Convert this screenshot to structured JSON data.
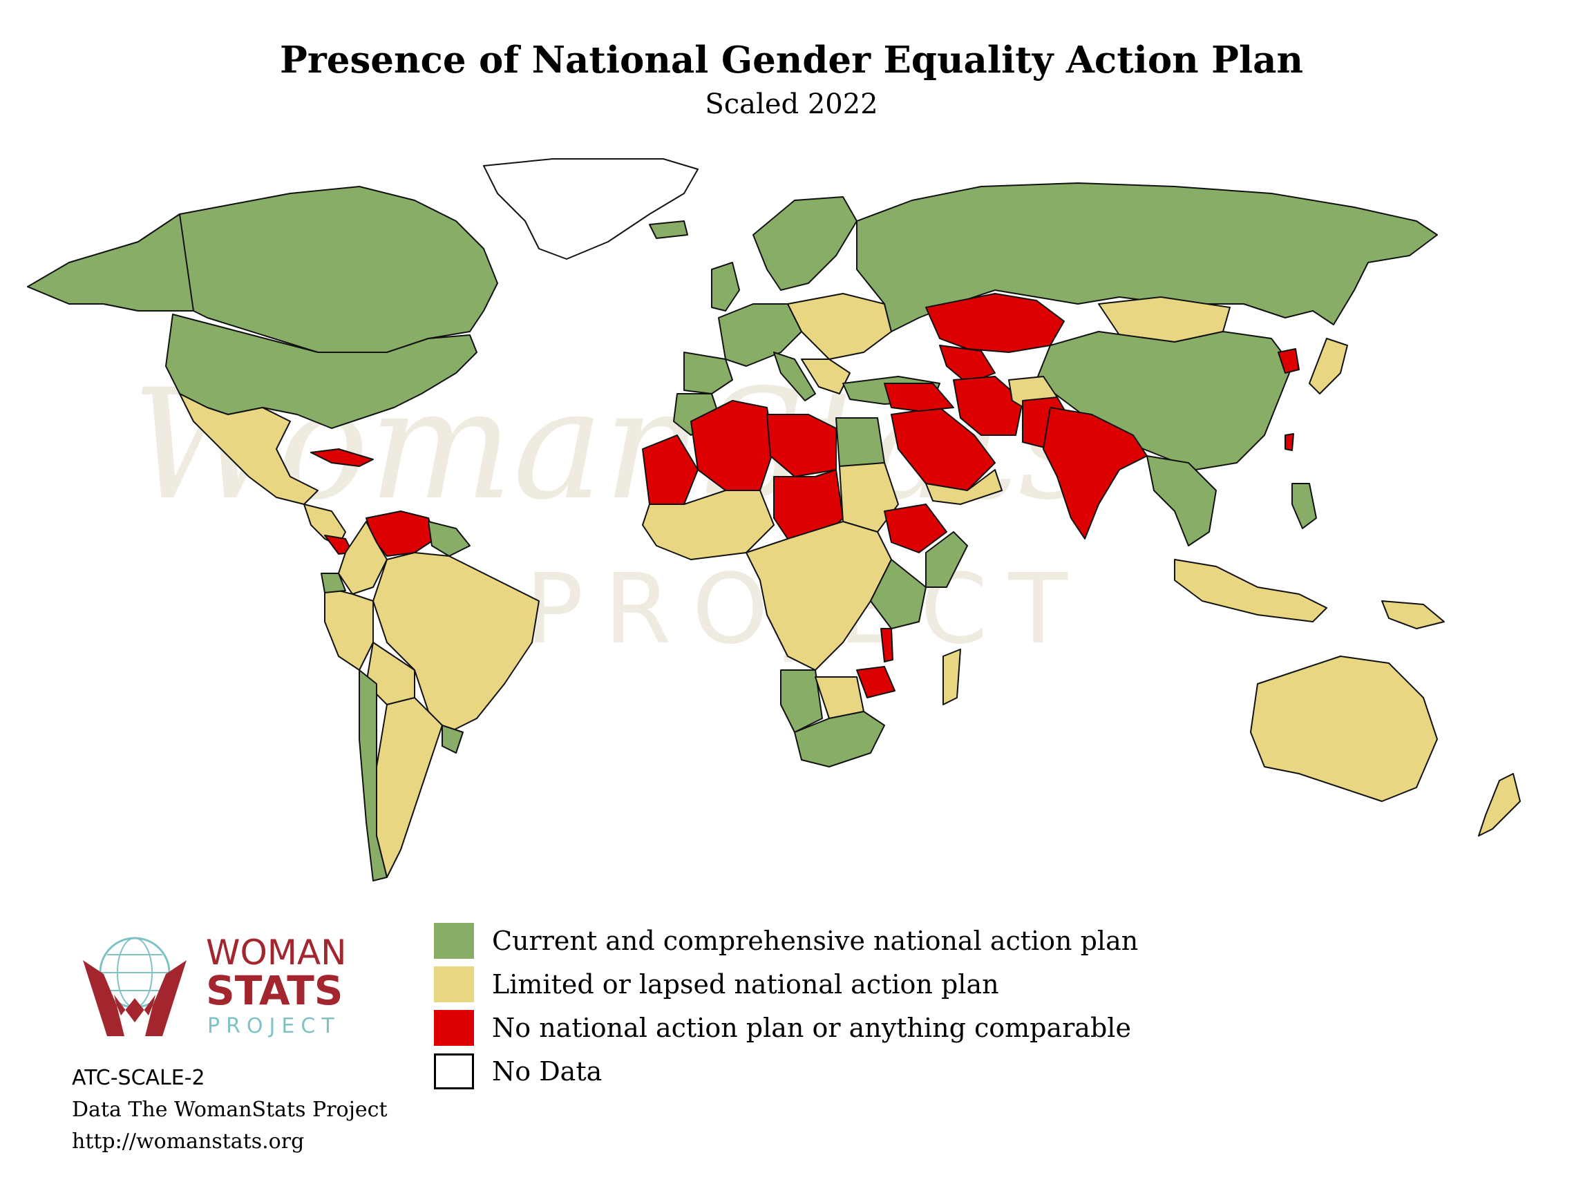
{
  "header": {
    "title": "Presence of National Gender Equality Action Plan",
    "subtitle": "Scaled 2022"
  },
  "colors": {
    "current": "#87ad66",
    "limited": "#e8d682",
    "none": "#dd0000",
    "no_data": "#ffffff",
    "logo_red": "#a3262e",
    "logo_teal": "#7fc2c6"
  },
  "legend": {
    "items": [
      {
        "label": "Current and comprehensive national action plan",
        "color": "#87ad66"
      },
      {
        "label": "Limited or lapsed national action plan",
        "color": "#e8d682"
      },
      {
        "label": "No national action plan or anything comparable",
        "color": "#dd0000"
      },
      {
        "label": "No Data",
        "color": "#ffffff"
      }
    ]
  },
  "logo": {
    "line1": "WOMAN",
    "line2": "STATS",
    "line3": "PROJECT"
  },
  "watermark": {
    "line1": "WomanStats",
    "line2": "PROJECT"
  },
  "credits": {
    "code": "ATC-SCALE-2",
    "source": "Data The WomanStats Project",
    "url": "http://womanstats.org"
  }
}
